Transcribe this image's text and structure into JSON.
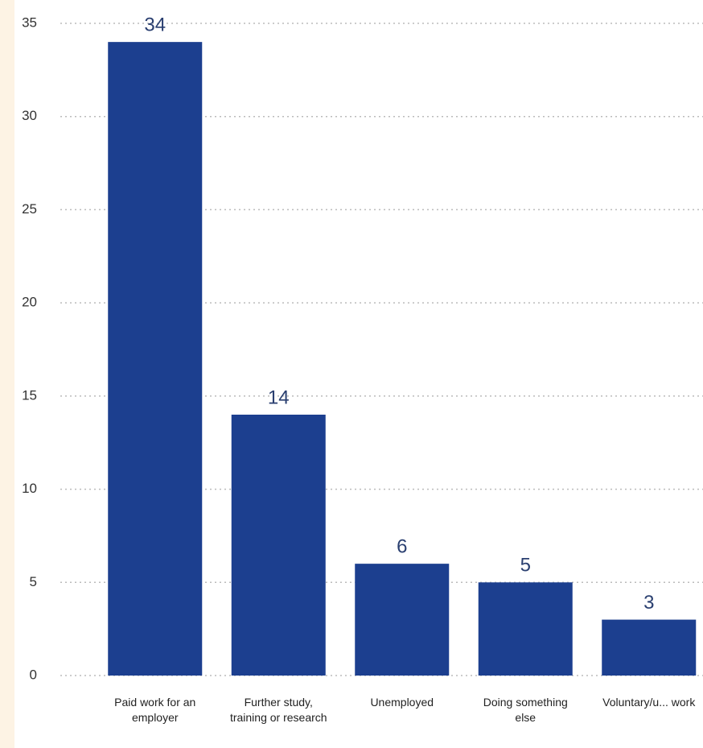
{
  "chart_data": {
    "type": "bar",
    "categories": [
      "Paid work for an employer",
      "Further study, training or research",
      "Unemployed",
      "Doing something else",
      "Voluntary/u... work"
    ],
    "values": [
      34,
      14,
      6,
      5,
      3
    ],
    "color": "#1c3f8f",
    "ylim": [
      0,
      35
    ],
    "yticks": [
      0,
      5,
      10,
      15,
      20,
      25,
      30,
      35
    ],
    "grid": true
  }
}
